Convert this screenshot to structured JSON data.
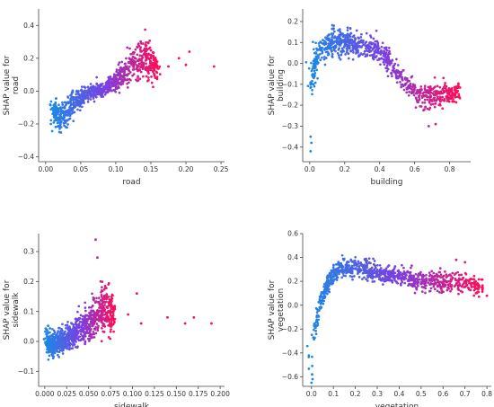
{
  "colors": {
    "low": "#1e88e5",
    "mid": "#7b3fe0",
    "high": "#ff0d57",
    "axis": "#444444"
  },
  "chart_data": [
    {
      "type": "scatter",
      "feature": "road",
      "xlabel": "road",
      "ylabel": "SHAP value for road",
      "xlim": [
        -0.01,
        0.255
      ],
      "ylim": [
        -0.43,
        0.5
      ],
      "xticks": [
        0.0,
        0.05,
        0.1,
        0.15,
        0.2,
        0.25
      ],
      "xtick_labels": [
        "0.00",
        "0.05",
        "0.10",
        "0.15",
        "0.20",
        "0.25"
      ],
      "yticks": [
        -0.4,
        -0.2,
        0.0,
        0.2,
        0.4
      ],
      "ytick_labels": [
        "−0.4",
        "−0.2",
        "0.0",
        "0.2",
        "0.4"
      ],
      "cloud": [
        {
          "x": 0.01,
          "y": -0.12,
          "sd": 0.06
        },
        {
          "x": 0.02,
          "y": -0.15,
          "sd": 0.08
        },
        {
          "x": 0.03,
          "y": -0.12,
          "sd": 0.09
        },
        {
          "x": 0.04,
          "y": -0.09,
          "sd": 0.08
        },
        {
          "x": 0.05,
          "y": -0.04,
          "sd": 0.05
        },
        {
          "x": 0.06,
          "y": -0.01,
          "sd": 0.04
        },
        {
          "x": 0.07,
          "y": 0.0,
          "sd": 0.04
        },
        {
          "x": 0.08,
          "y": 0.0,
          "sd": 0.04
        },
        {
          "x": 0.09,
          "y": 0.03,
          "sd": 0.05
        },
        {
          "x": 0.1,
          "y": 0.07,
          "sd": 0.06
        },
        {
          "x": 0.11,
          "y": 0.11,
          "sd": 0.07
        },
        {
          "x": 0.12,
          "y": 0.15,
          "sd": 0.08
        },
        {
          "x": 0.13,
          "y": 0.18,
          "sd": 0.1
        },
        {
          "x": 0.14,
          "y": 0.2,
          "sd": 0.11
        },
        {
          "x": 0.15,
          "y": 0.18,
          "sd": 0.1
        },
        {
          "x": 0.16,
          "y": 0.14,
          "sd": 0.06
        }
      ],
      "extra_points": [
        [
          0.19,
          0.2
        ],
        [
          0.2,
          0.16
        ],
        [
          0.205,
          0.24
        ],
        [
          0.24,
          0.15
        ],
        [
          0.175,
          0.15
        ]
      ]
    },
    {
      "type": "scatter",
      "feature": "building",
      "xlabel": "building",
      "ylabel": "SHAP value for building",
      "xlim": [
        -0.04,
        0.92
      ],
      "ylim": [
        -0.47,
        0.26
      ],
      "xticks": [
        0.0,
        0.2,
        0.4,
        0.6,
        0.8
      ],
      "xtick_labels": [
        "0.0",
        "0.2",
        "0.4",
        "0.6",
        "0.8"
      ],
      "yticks": [
        -0.4,
        -0.3,
        -0.2,
        -0.1,
        0.0,
        0.1,
        0.2
      ],
      "ytick_labels": [
        "−0.4",
        "−0.3",
        "−0.2",
        "−0.1",
        "0.0",
        "0.1",
        "0.2"
      ],
      "cloud": [
        {
          "x": 0.01,
          "y": -0.1,
          "sd": 0.12
        },
        {
          "x": 0.03,
          "y": 0.0,
          "sd": 0.08
        },
        {
          "x": 0.06,
          "y": 0.06,
          "sd": 0.06
        },
        {
          "x": 0.1,
          "y": 0.09,
          "sd": 0.06
        },
        {
          "x": 0.15,
          "y": 0.1,
          "sd": 0.06
        },
        {
          "x": 0.2,
          "y": 0.1,
          "sd": 0.05
        },
        {
          "x": 0.25,
          "y": 0.09,
          "sd": 0.05
        },
        {
          "x": 0.3,
          "y": 0.08,
          "sd": 0.05
        },
        {
          "x": 0.35,
          "y": 0.07,
          "sd": 0.05
        },
        {
          "x": 0.4,
          "y": 0.06,
          "sd": 0.05
        },
        {
          "x": 0.45,
          "y": 0.02,
          "sd": 0.05
        },
        {
          "x": 0.5,
          "y": -0.05,
          "sd": 0.05
        },
        {
          "x": 0.55,
          "y": -0.1,
          "sd": 0.05
        },
        {
          "x": 0.6,
          "y": -0.14,
          "sd": 0.05
        },
        {
          "x": 0.65,
          "y": -0.16,
          "sd": 0.05
        },
        {
          "x": 0.7,
          "y": -0.16,
          "sd": 0.05
        },
        {
          "x": 0.75,
          "y": -0.15,
          "sd": 0.05
        },
        {
          "x": 0.8,
          "y": -0.14,
          "sd": 0.04
        },
        {
          "x": 0.85,
          "y": -0.13,
          "sd": 0.04
        }
      ],
      "extra_points": [
        [
          0.005,
          -0.42
        ],
        [
          0.01,
          -0.38
        ],
        [
          0.005,
          -0.35
        ],
        [
          0.68,
          -0.3
        ],
        [
          0.72,
          -0.29
        ],
        [
          0.85,
          -0.1
        ]
      ]
    },
    {
      "type": "scatter",
      "feature": "sidewalk",
      "xlabel": "sidewalk",
      "ylabel": "SHAP value for sidewalk",
      "xlim": [
        -0.007,
        0.205
      ],
      "ylim": [
        -0.15,
        0.36
      ],
      "xticks": [
        0.0,
        0.025,
        0.05,
        0.075,
        0.1,
        0.125,
        0.15,
        0.175,
        0.2
      ],
      "xtick_labels": [
        "0.000",
        "0.025",
        "0.050",
        "0.075",
        "0.100",
        "0.125",
        "0.150",
        "0.175",
        "0.200"
      ],
      "yticks": [
        -0.1,
        0.0,
        0.1,
        0.2,
        0.3
      ],
      "ytick_labels": [
        "−0.1",
        "0.0",
        "0.1",
        "0.2",
        "0.3"
      ],
      "cloud": [
        {
          "x": 0.002,
          "y": 0.0,
          "sd": 0.05
        },
        {
          "x": 0.006,
          "y": -0.01,
          "sd": 0.04
        },
        {
          "x": 0.01,
          "y": -0.01,
          "sd": 0.035
        },
        {
          "x": 0.015,
          "y": 0.0,
          "sd": 0.035
        },
        {
          "x": 0.02,
          "y": 0.0,
          "sd": 0.035
        },
        {
          "x": 0.025,
          "y": 0.01,
          "sd": 0.035
        },
        {
          "x": 0.03,
          "y": 0.02,
          "sd": 0.035
        },
        {
          "x": 0.035,
          "y": 0.03,
          "sd": 0.04
        },
        {
          "x": 0.04,
          "y": 0.04,
          "sd": 0.045
        },
        {
          "x": 0.045,
          "y": 0.05,
          "sd": 0.05
        },
        {
          "x": 0.05,
          "y": 0.06,
          "sd": 0.055
        },
        {
          "x": 0.055,
          "y": 0.08,
          "sd": 0.06
        },
        {
          "x": 0.06,
          "y": 0.09,
          "sd": 0.06
        },
        {
          "x": 0.065,
          "y": 0.1,
          "sd": 0.07
        },
        {
          "x": 0.07,
          "y": 0.11,
          "sd": 0.07
        },
        {
          "x": 0.075,
          "y": 0.1,
          "sd": 0.06
        },
        {
          "x": 0.08,
          "y": 0.09,
          "sd": 0.05
        }
      ],
      "extra_points": [
        [
          0.058,
          0.34
        ],
        [
          0.06,
          0.28
        ],
        [
          0.11,
          0.06
        ],
        [
          0.105,
          0.16
        ],
        [
          0.14,
          0.08
        ],
        [
          0.16,
          0.06
        ],
        [
          0.17,
          0.08
        ],
        [
          0.19,
          0.06
        ],
        [
          0.095,
          0.09
        ]
      ]
    },
    {
      "type": "scatter",
      "feature": "vegetation",
      "xlabel": "vegetation",
      "ylabel": "SHAP value for vegetation",
      "xlim": [
        -0.04,
        0.82
      ],
      "ylim": [
        -0.68,
        0.6
      ],
      "xticks": [
        0.0,
        0.1,
        0.2,
        0.3,
        0.4,
        0.5,
        0.6,
        0.7,
        0.8
      ],
      "xtick_labels": [
        "0.0",
        "0.1",
        "0.2",
        "0.3",
        "0.4",
        "0.5",
        "0.6",
        "0.7",
        "0.8"
      ],
      "yticks": [
        -0.6,
        -0.4,
        -0.2,
        0.0,
        0.2,
        0.4,
        0.6
      ],
      "ytick_labels": [
        "−0.6",
        "−0.4",
        "−0.2",
        "0.0",
        "0.2",
        "0.4",
        "0.6"
      ],
      "cloud": [
        {
          "x": 0.003,
          "y": -0.4,
          "sd": 0.12
        },
        {
          "x": 0.012,
          "y": -0.25,
          "sd": 0.1
        },
        {
          "x": 0.025,
          "y": -0.12,
          "sd": 0.09
        },
        {
          "x": 0.04,
          "y": 0.0,
          "sd": 0.08
        },
        {
          "x": 0.06,
          "y": 0.12,
          "sd": 0.07
        },
        {
          "x": 0.08,
          "y": 0.2,
          "sd": 0.07
        },
        {
          "x": 0.1,
          "y": 0.26,
          "sd": 0.07
        },
        {
          "x": 0.13,
          "y": 0.3,
          "sd": 0.07
        },
        {
          "x": 0.16,
          "y": 0.32,
          "sd": 0.07
        },
        {
          "x": 0.2,
          "y": 0.31,
          "sd": 0.07
        },
        {
          "x": 0.24,
          "y": 0.3,
          "sd": 0.07
        },
        {
          "x": 0.28,
          "y": 0.28,
          "sd": 0.07
        },
        {
          "x": 0.33,
          "y": 0.26,
          "sd": 0.07
        },
        {
          "x": 0.38,
          "y": 0.24,
          "sd": 0.07
        },
        {
          "x": 0.43,
          "y": 0.22,
          "sd": 0.08
        },
        {
          "x": 0.48,
          "y": 0.21,
          "sd": 0.08
        },
        {
          "x": 0.53,
          "y": 0.2,
          "sd": 0.08
        },
        {
          "x": 0.58,
          "y": 0.2,
          "sd": 0.08
        },
        {
          "x": 0.65,
          "y": 0.19,
          "sd": 0.08
        },
        {
          "x": 0.72,
          "y": 0.18,
          "sd": 0.08
        },
        {
          "x": 0.78,
          "y": 0.15,
          "sd": 0.05
        }
      ],
      "extra_points": [
        [
          0.0,
          -0.65
        ],
        [
          0.005,
          -0.62
        ],
        [
          0.003,
          -0.58
        ],
        [
          0.66,
          0.38
        ],
        [
          0.7,
          0.36
        ],
        [
          0.75,
          0.1
        ],
        [
          0.8,
          0.08
        ]
      ]
    }
  ]
}
